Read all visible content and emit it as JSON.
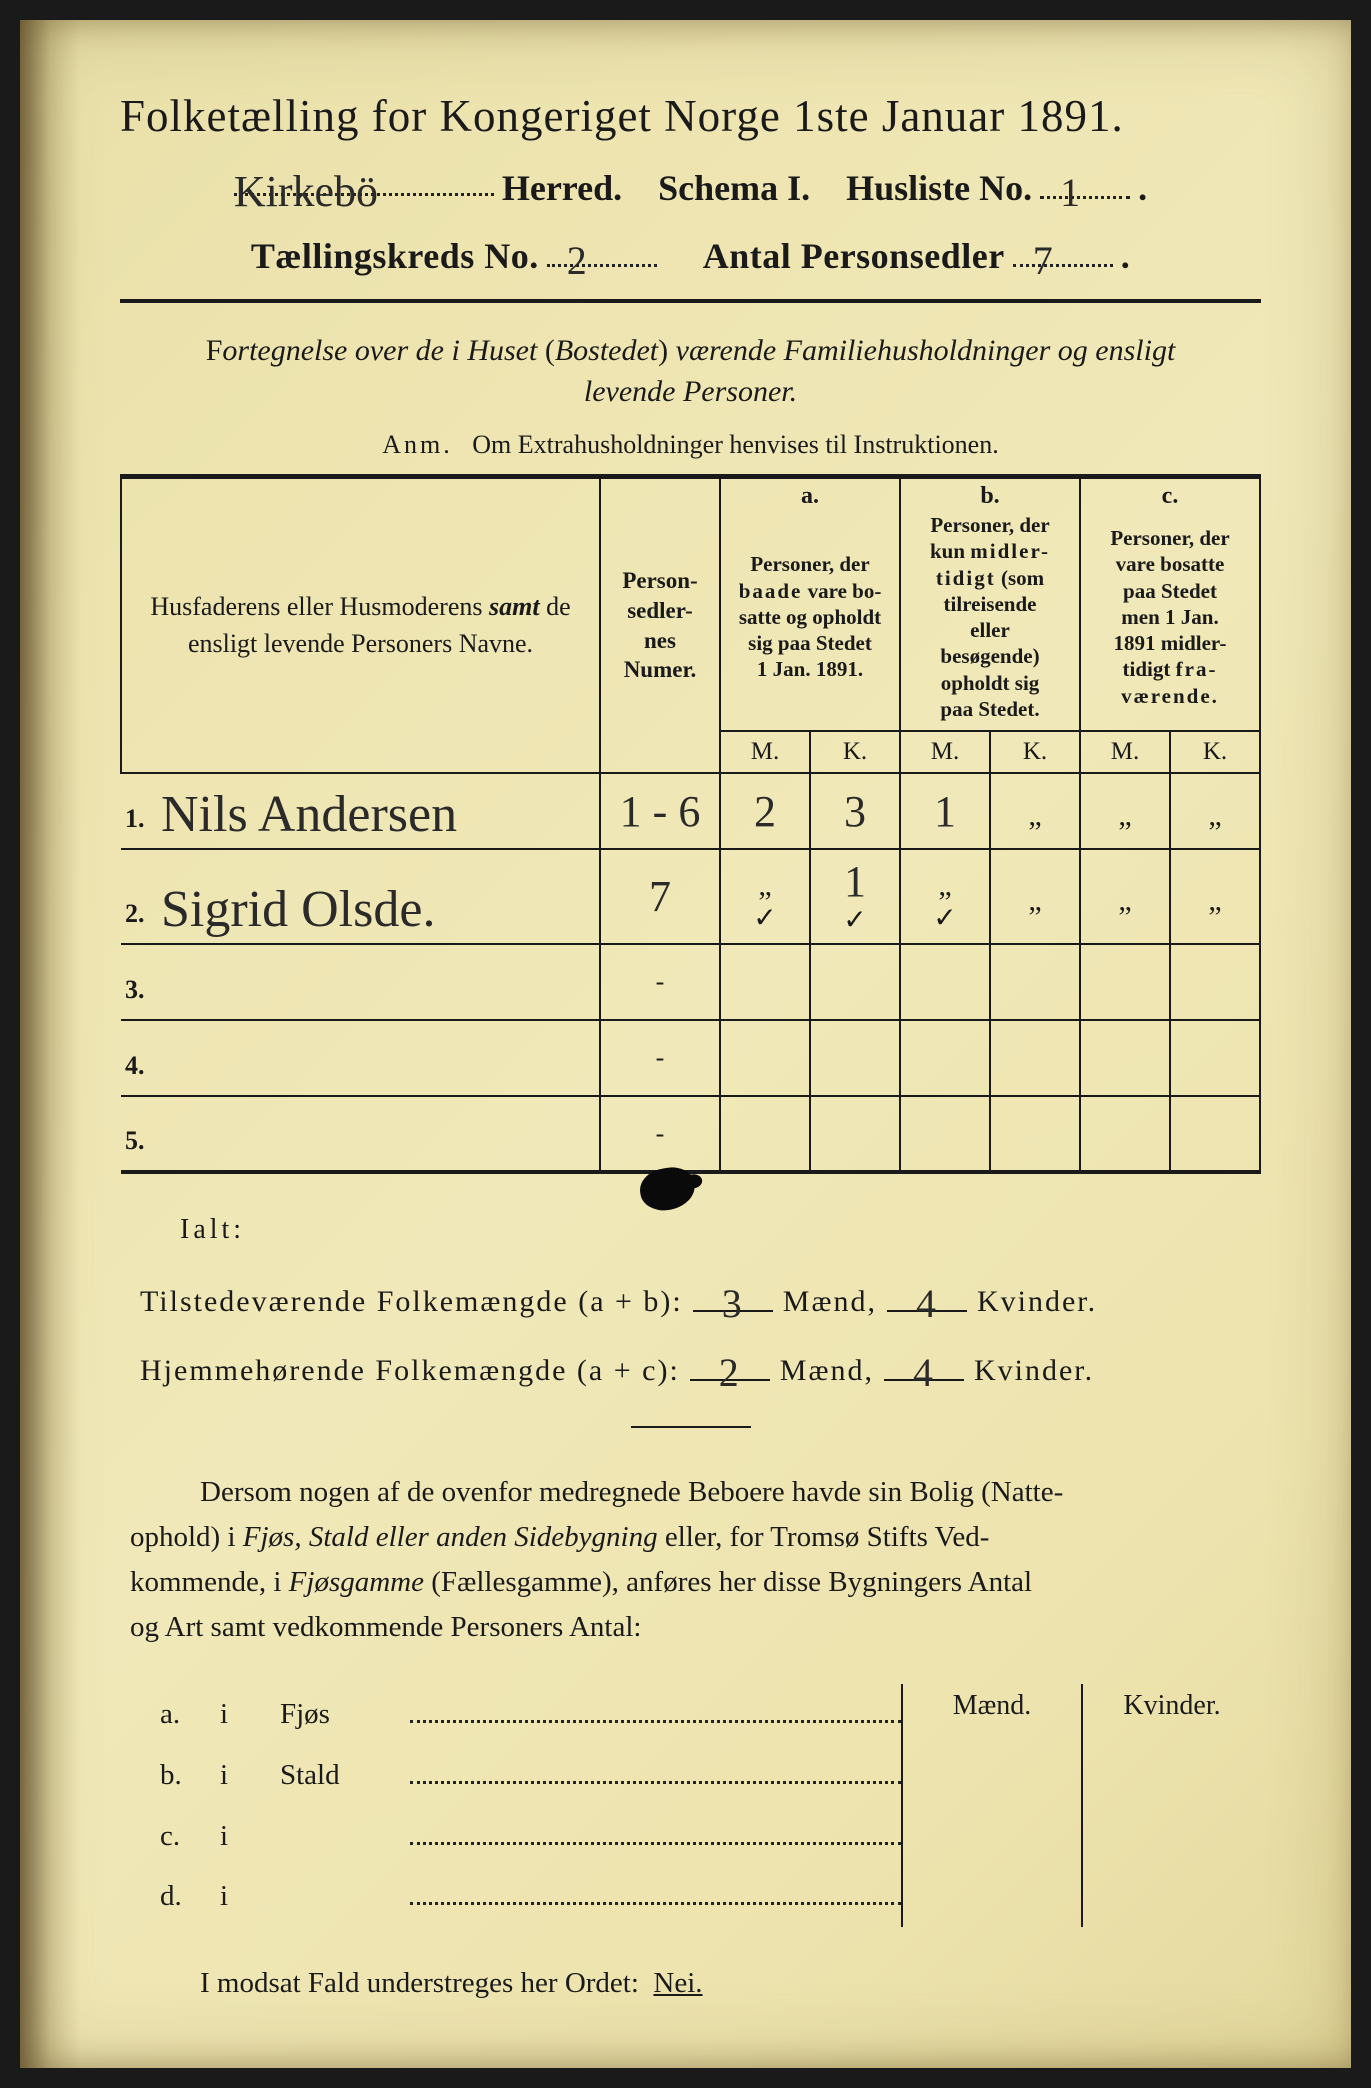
{
  "header": {
    "title": "Folketælling for Kongeriget Norge 1ste Januar 1891.",
    "herred_value": "Kirkebö",
    "herred_label": "Herred.",
    "schema_label": "Schema I.",
    "husliste_label": "Husliste No.",
    "husliste_value": "1",
    "kreds_label": "Tællingskreds No.",
    "kreds_value": "2",
    "antal_label": "Antal Personsedler",
    "antal_value": "7"
  },
  "section": {
    "intro": "Fortegnelse over de i Huset (Bostedet) værende Familiehusholdninger og ensligt levende Personer.",
    "anm_label": "Anm.",
    "anm_text": "Om Extrahusholdninger henvises til Instruktionen."
  },
  "table": {
    "head_name": "Husfaderens eller Husmoderens samt de ensligt levende Personers Navne.",
    "head_num": "Person-\nsedler-\nnes\nNumer.",
    "col_a_letter": "a.",
    "col_a": "Personer, der baade vare bosatte og opholdt sig paa Stedet 1 Jan. 1891.",
    "col_b_letter": "b.",
    "col_b": "Personer, der kun midlertidigt (som tilreisende eller besøgende) opholdt sig paa Stedet.",
    "col_c_letter": "c.",
    "col_c": "Personer, der vare bosatte paa Stedet men 1 Jan. 1891 midlertidigt fraværende.",
    "m": "M.",
    "k": "K.",
    "rows": [
      {
        "n": "1.",
        "name": "Nils Andersen",
        "num": "1 - 6",
        "aM": "2",
        "aK": "3",
        "bM": "1",
        "bK": "„",
        "cM": "„",
        "cK": "„"
      },
      {
        "n": "2.",
        "name": "Sigrid Olsde.",
        "num": "7",
        "aM": "„",
        "aK": "1",
        "bM": "„",
        "bK": "„",
        "cM": "„",
        "cK": "„"
      },
      {
        "n": "3.",
        "name": "",
        "num": "",
        "aM": "",
        "aK": "",
        "bM": "",
        "bK": "",
        "cM": "",
        "cK": ""
      },
      {
        "n": "4.",
        "name": "",
        "num": "",
        "aM": "",
        "aK": "",
        "bM": "",
        "bK": "",
        "cM": "",
        "cK": ""
      },
      {
        "n": "5.",
        "name": "",
        "num": "",
        "aM": "",
        "aK": "",
        "bM": "",
        "bK": "",
        "cM": "",
        "cK": ""
      }
    ],
    "checks": [
      "✓",
      "✓",
      "✓"
    ]
  },
  "totals": {
    "ialt": "Ialt:",
    "line1_label": "Tilstedeværende Folkemængde (a + b):",
    "line1_m": "3",
    "line1_m_label": "Mænd,",
    "line1_k": "4",
    "line1_k_label": "Kvinder.",
    "line2_label": "Hjemmehørende Folkemængde (a + c):",
    "line2_m": "2",
    "line2_m_label": "Mænd,",
    "line2_k": "4",
    "line2_k_label": "Kvinder."
  },
  "bottom": {
    "para": "Dersom nogen af de ovenfor medregnede Beboere havde sin Bolig (Natteophold) i Fjøs, Stald eller anden Sidebygning eller, for Tromsø Stifts Vedkommende, i Fjøsgamme (Fællesgamme), anføres her disse Bygningers Antal og Art samt vedkommende Personers Antal:",
    "col_m": "Mænd.",
    "col_k": "Kvinder.",
    "rows": [
      {
        "l": "a.",
        "i": "i",
        "name": "Fjøs"
      },
      {
        "l": "b.",
        "i": "i",
        "name": "Stald"
      },
      {
        "l": "c.",
        "i": "i",
        "name": ""
      },
      {
        "l": "d.",
        "i": "i",
        "name": ""
      }
    ],
    "final": "I modsat Fald understreges her Ordet:",
    "final_word": "Nei."
  },
  "colors": {
    "paper": "#ede4b0",
    "ink": "#1a1a1a",
    "handwriting": "#2a2a2a"
  }
}
